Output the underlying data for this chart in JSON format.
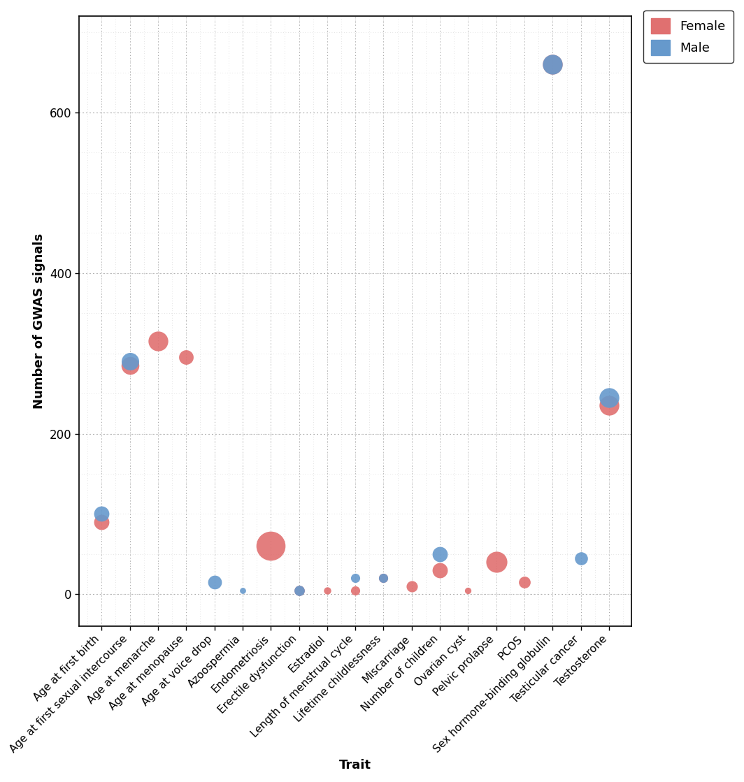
{
  "traits": [
    "Age at first birth",
    "Age at first sexual intercourse",
    "Age at menarche",
    "Age at menopause",
    "Age at voice drop",
    "Azoospermia",
    "Endometriosis",
    "Erectile dysfunction",
    "Estradiol",
    "Length of menstrual cycle",
    "Lifetime childlessness",
    "Miscarriage",
    "Number of children",
    "Ovarian cyst",
    "Pelvic prolapse",
    "PCOS",
    "Sex hormone-binding globulin",
    "Testicular cancer",
    "Testosterone"
  ],
  "female_signals": [
    90,
    285,
    315,
    295,
    0,
    0,
    60,
    5,
    5,
    5,
    20,
    10,
    30,
    5,
    40,
    15,
    660,
    0,
    235
  ],
  "male_signals": [
    100,
    290,
    0,
    0,
    15,
    5,
    0,
    5,
    0,
    20,
    20,
    0,
    50,
    0,
    0,
    0,
    660,
    45,
    245
  ],
  "female_n": [
    220000,
    300000,
    370000,
    200000,
    0,
    0,
    800000,
    100000,
    50000,
    80000,
    80000,
    120000,
    220000,
    40000,
    420000,
    130000,
    370000,
    0,
    370000
  ],
  "male_n": [
    220000,
    290000,
    0,
    0,
    180000,
    35000,
    0,
    100000,
    0,
    80000,
    80000,
    0,
    220000,
    0,
    0,
    0,
    370000,
    160000,
    370000
  ],
  "female_color": "#E07070",
  "male_color": "#6699CC",
  "ylabel": "Number of GWAS signals",
  "xlabel": "Trait",
  "ylim": [
    -40,
    720
  ],
  "yticks": [
    0,
    200,
    400,
    600
  ],
  "yticklabels": [
    "0",
    "200",
    "400",
    "600"
  ],
  "background_color": "#ffffff",
  "grid_color": "#999999",
  "legend_labels": [
    "Female",
    "Male"
  ]
}
